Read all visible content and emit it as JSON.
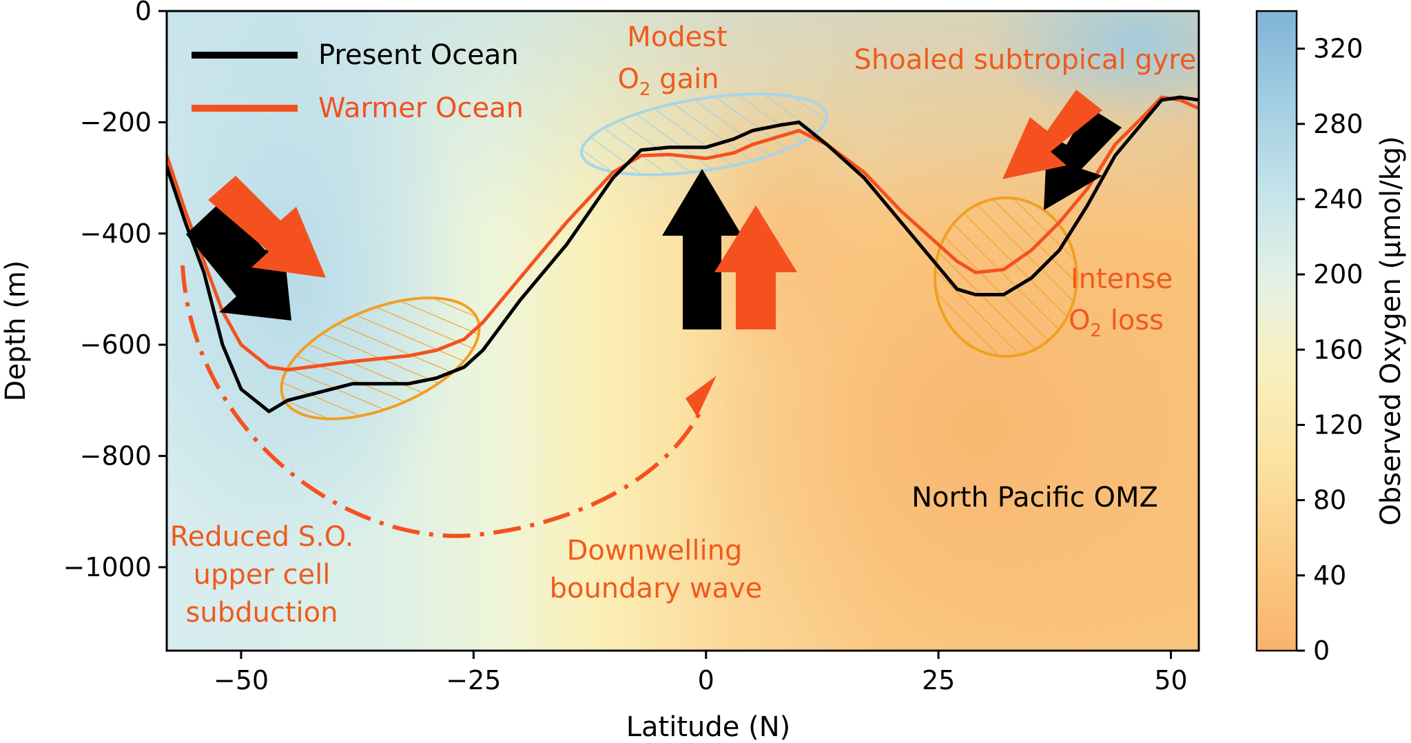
{
  "chart_data": {
    "type": "line",
    "title": "",
    "xlabel": "Latitude (N)",
    "ylabel": "Depth (m)",
    "xlim": [
      -58,
      53
    ],
    "ylim": [
      -1150,
      0
    ],
    "x_ticks": [
      -50,
      -25,
      0,
      25,
      50
    ],
    "x_tick_labels": [
      "−50",
      "−25",
      "0",
      "25",
      "50"
    ],
    "y_ticks": [
      0,
      -200,
      -400,
      -600,
      -800,
      -1000
    ],
    "y_tick_labels": [
      "0",
      "−200",
      "−400",
      "−600",
      "−800",
      "−1000"
    ],
    "grid": false,
    "legend_position": "top-left",
    "colorbar": {
      "label": "Observed Oxygen (μmol/kg)",
      "range": [
        0,
        340
      ],
      "ticks": [
        0,
        40,
        80,
        120,
        160,
        200,
        240,
        280,
        320
      ],
      "tick_labels": [
        "0",
        "40",
        "80",
        "120",
        "160",
        "200",
        "240",
        "280",
        "320"
      ],
      "colormap": [
        "#f9b36e",
        "#fbd08a",
        "#fce7a8",
        "#f5f3c6",
        "#dcefe9",
        "#bfe0ea",
        "#9ccbe0",
        "#7fb7d6"
      ]
    },
    "series": [
      {
        "name": "Present Ocean",
        "color": "#000000",
        "x": [
          -58,
          -56,
          -54,
          -52,
          -50,
          -47,
          -45,
          -38,
          -32,
          -29,
          -26,
          -24,
          -20,
          -15,
          -10,
          -7,
          -4,
          0,
          3,
          5,
          8,
          10,
          13,
          17,
          21,
          25,
          27,
          29,
          32,
          35,
          38,
          41,
          44,
          47,
          49,
          51,
          53
        ],
        "y": [
          -280,
          -380,
          -470,
          -600,
          -680,
          -720,
          -700,
          -670,
          -670,
          -660,
          -640,
          -610,
          -520,
          -420,
          -300,
          -250,
          -245,
          -245,
          -230,
          -215,
          -205,
          -200,
          -240,
          -300,
          -380,
          -460,
          -500,
          -510,
          -510,
          -480,
          -430,
          -350,
          -260,
          -200,
          -160,
          -155,
          -160
        ]
      },
      {
        "name": "Warmer Ocean",
        "color": "#f4511e",
        "x": [
          -58,
          -56,
          -54,
          -52,
          -50,
          -47,
          -45,
          -38,
          -32,
          -29,
          -26,
          -24,
          -20,
          -15,
          -10,
          -7,
          -4,
          0,
          3,
          5,
          8,
          10,
          13,
          17,
          21,
          25,
          27,
          29,
          32,
          35,
          38,
          41,
          44,
          47,
          49,
          51,
          53
        ],
        "y": [
          -260,
          -360,
          -450,
          -540,
          -600,
          -640,
          -645,
          -630,
          -620,
          -610,
          -590,
          -560,
          -480,
          -380,
          -290,
          -260,
          -258,
          -265,
          -255,
          -240,
          -225,
          -215,
          -240,
          -290,
          -360,
          -420,
          -450,
          -470,
          -465,
          -430,
          -380,
          -320,
          -240,
          -190,
          -155,
          -160,
          -175
        ]
      }
    ],
    "annotations": {
      "modest_gain_line1": "Modest",
      "modest_gain_line2_o": "O",
      "modest_gain_line2_sub": "2",
      "modest_gain_line2_rest": " gain",
      "shoaled_gyre": "Shoaled subtropical gyre",
      "intense_loss_line1": "Intense",
      "intense_loss_line2_o": "O",
      "intense_loss_line2_sub": "2",
      "intense_loss_line2_rest": " loss",
      "omz": "North Pacific OMZ",
      "reduced_line1": "Reduced S.O.",
      "reduced_line2": "upper cell",
      "reduced_line3": "subduction",
      "downwelling_line1": "Downwelling",
      "downwelling_line2": "boundary wave"
    }
  }
}
